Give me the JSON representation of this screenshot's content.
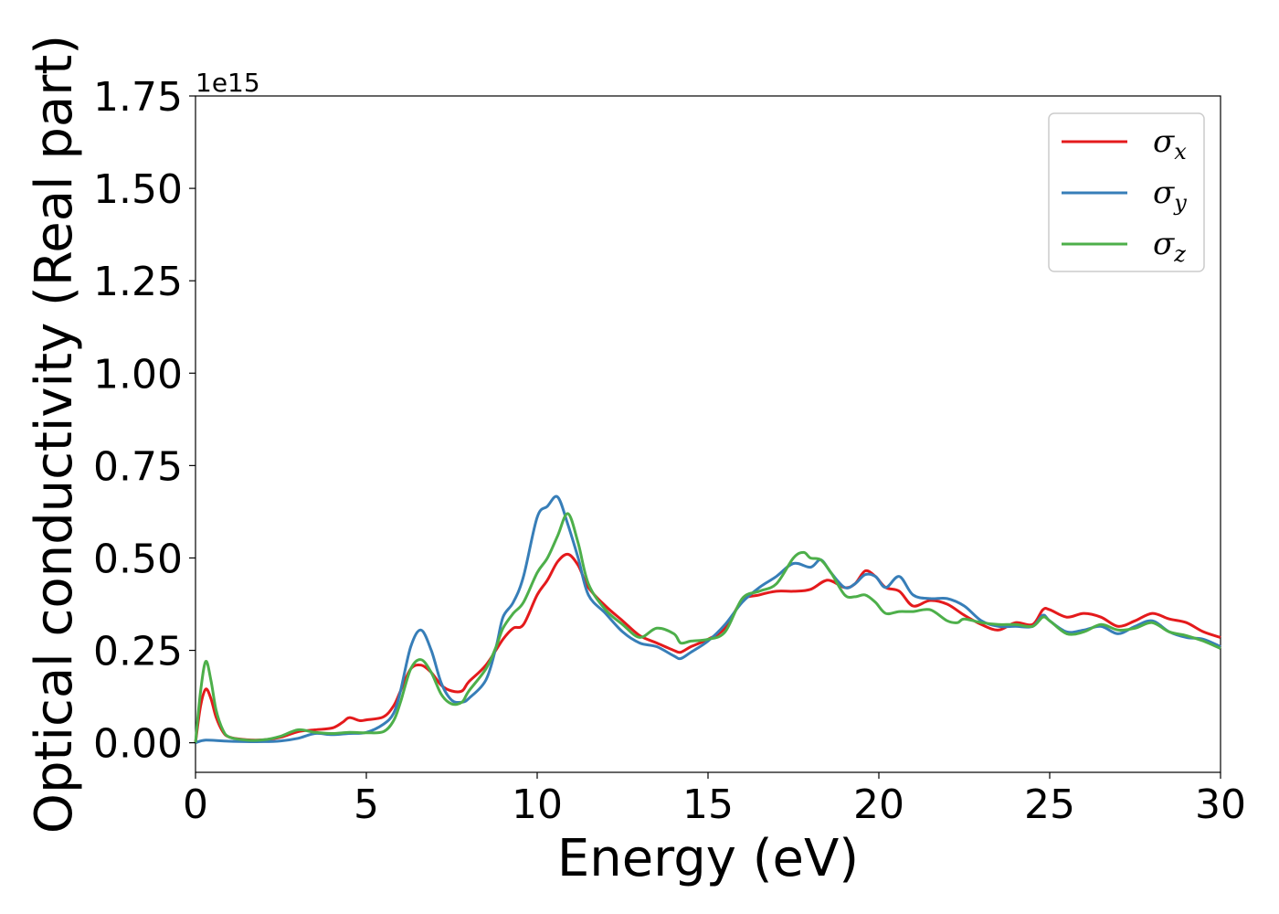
{
  "chart_data": {
    "type": "line",
    "title": "",
    "xlabel": "Energy (eV)",
    "ylabel": "Optical conductivity (Real part)",
    "y_offset_label": "1e15",
    "xlim": [
      0,
      30
    ],
    "ylim": [
      -0.08,
      1.75
    ],
    "x_ticks": [
      0,
      5,
      10,
      15,
      20,
      25,
      30
    ],
    "x_tick_labels": [
      "0",
      "5",
      "10",
      "15",
      "20",
      "25",
      "30"
    ],
    "y_ticks": [
      0.0,
      0.25,
      0.5,
      0.75,
      1.0,
      1.25,
      1.5,
      1.75
    ],
    "y_tick_labels": [
      "0.00",
      "0.25",
      "0.50",
      "0.75",
      "1.00",
      "1.25",
      "1.50",
      "1.75"
    ],
    "grid": false,
    "legend_position": "top-right",
    "series": [
      {
        "name": "σx",
        "name_base": "σ",
        "name_sub": "x",
        "color": "#e41a1c",
        "points": [
          [
            0,
            0
          ],
          [
            0.15,
            0.1
          ],
          [
            0.3,
            0.145
          ],
          [
            0.45,
            0.12
          ],
          [
            0.6,
            0.07
          ],
          [
            0.8,
            0.03
          ],
          [
            1.0,
            0.015
          ],
          [
            1.5,
            0.008
          ],
          [
            2.0,
            0.008
          ],
          [
            2.5,
            0.015
          ],
          [
            3.0,
            0.03
          ],
          [
            3.5,
            0.035
          ],
          [
            4.0,
            0.04
          ],
          [
            4.3,
            0.055
          ],
          [
            4.5,
            0.068
          ],
          [
            4.8,
            0.06
          ],
          [
            5.0,
            0.062
          ],
          [
            5.5,
            0.07
          ],
          [
            5.8,
            0.1
          ],
          [
            6.0,
            0.14
          ],
          [
            6.3,
            0.2
          ],
          [
            6.6,
            0.21
          ],
          [
            6.9,
            0.19
          ],
          [
            7.2,
            0.155
          ],
          [
            7.5,
            0.14
          ],
          [
            7.8,
            0.14
          ],
          [
            8.0,
            0.165
          ],
          [
            8.5,
            0.21
          ],
          [
            9.0,
            0.28
          ],
          [
            9.3,
            0.31
          ],
          [
            9.6,
            0.32
          ],
          [
            10.0,
            0.4
          ],
          [
            10.3,
            0.44
          ],
          [
            10.6,
            0.49
          ],
          [
            10.9,
            0.51
          ],
          [
            11.2,
            0.48
          ],
          [
            11.5,
            0.42
          ],
          [
            12.0,
            0.37
          ],
          [
            12.5,
            0.33
          ],
          [
            13.0,
            0.29
          ],
          [
            13.5,
            0.27
          ],
          [
            14.0,
            0.25
          ],
          [
            14.2,
            0.245
          ],
          [
            14.5,
            0.26
          ],
          [
            15.0,
            0.28
          ],
          [
            15.5,
            0.31
          ],
          [
            16.0,
            0.385
          ],
          [
            16.5,
            0.4
          ],
          [
            17.0,
            0.41
          ],
          [
            17.5,
            0.41
          ],
          [
            18.0,
            0.415
          ],
          [
            18.5,
            0.44
          ],
          [
            19.0,
            0.42
          ],
          [
            19.3,
            0.43
          ],
          [
            19.6,
            0.465
          ],
          [
            19.9,
            0.45
          ],
          [
            20.2,
            0.42
          ],
          [
            20.6,
            0.41
          ],
          [
            21.0,
            0.37
          ],
          [
            21.5,
            0.385
          ],
          [
            22.0,
            0.375
          ],
          [
            22.5,
            0.345
          ],
          [
            23.0,
            0.32
          ],
          [
            23.5,
            0.305
          ],
          [
            24.0,
            0.325
          ],
          [
            24.5,
            0.32
          ],
          [
            24.8,
            0.36
          ],
          [
            25.0,
            0.36
          ],
          [
            25.5,
            0.34
          ],
          [
            26.0,
            0.35
          ],
          [
            26.5,
            0.34
          ],
          [
            27.0,
            0.315
          ],
          [
            27.5,
            0.33
          ],
          [
            28.0,
            0.35
          ],
          [
            28.5,
            0.335
          ],
          [
            29.0,
            0.325
          ],
          [
            29.5,
            0.3
          ],
          [
            30.0,
            0.285
          ]
        ]
      },
      {
        "name": "σy",
        "name_base": "σ",
        "name_sub": "y",
        "color": "#377eb8",
        "points": [
          [
            0,
            0
          ],
          [
            0.3,
            0.007
          ],
          [
            1.0,
            0.004
          ],
          [
            2.0,
            0.003
          ],
          [
            2.5,
            0.005
          ],
          [
            3.0,
            0.012
          ],
          [
            3.5,
            0.025
          ],
          [
            4.0,
            0.022
          ],
          [
            4.5,
            0.025
          ],
          [
            5.0,
            0.028
          ],
          [
            5.5,
            0.05
          ],
          [
            5.8,
            0.08
          ],
          [
            6.0,
            0.14
          ],
          [
            6.3,
            0.26
          ],
          [
            6.6,
            0.305
          ],
          [
            6.9,
            0.25
          ],
          [
            7.2,
            0.16
          ],
          [
            7.5,
            0.115
          ],
          [
            7.8,
            0.11
          ],
          [
            8.0,
            0.12
          ],
          [
            8.5,
            0.17
          ],
          [
            8.8,
            0.26
          ],
          [
            9.0,
            0.34
          ],
          [
            9.3,
            0.38
          ],
          [
            9.6,
            0.45
          ],
          [
            10.0,
            0.61
          ],
          [
            10.3,
            0.64
          ],
          [
            10.6,
            0.665
          ],
          [
            10.9,
            0.59
          ],
          [
            11.2,
            0.5
          ],
          [
            11.5,
            0.4
          ],
          [
            12.0,
            0.35
          ],
          [
            12.5,
            0.3
          ],
          [
            13.0,
            0.27
          ],
          [
            13.5,
            0.26
          ],
          [
            14.0,
            0.235
          ],
          [
            14.2,
            0.228
          ],
          [
            14.5,
            0.245
          ],
          [
            15.0,
            0.275
          ],
          [
            15.5,
            0.32
          ],
          [
            16.0,
            0.38
          ],
          [
            16.5,
            0.42
          ],
          [
            17.0,
            0.45
          ],
          [
            17.5,
            0.485
          ],
          [
            18.0,
            0.475
          ],
          [
            18.3,
            0.495
          ],
          [
            18.6,
            0.46
          ],
          [
            19.0,
            0.42
          ],
          [
            19.3,
            0.43
          ],
          [
            19.6,
            0.455
          ],
          [
            19.9,
            0.45
          ],
          [
            20.2,
            0.42
          ],
          [
            20.6,
            0.45
          ],
          [
            21.0,
            0.4
          ],
          [
            21.5,
            0.39
          ],
          [
            22.0,
            0.39
          ],
          [
            22.5,
            0.37
          ],
          [
            23.0,
            0.33
          ],
          [
            23.5,
            0.315
          ],
          [
            24.0,
            0.315
          ],
          [
            24.5,
            0.315
          ],
          [
            24.8,
            0.345
          ],
          [
            25.0,
            0.33
          ],
          [
            25.5,
            0.3
          ],
          [
            26.0,
            0.305
          ],
          [
            26.5,
            0.315
          ],
          [
            27.0,
            0.295
          ],
          [
            27.5,
            0.315
          ],
          [
            28.0,
            0.33
          ],
          [
            28.5,
            0.3
          ],
          [
            29.0,
            0.285
          ],
          [
            29.5,
            0.28
          ],
          [
            30.0,
            0.26
          ]
        ]
      },
      {
        "name": "σz",
        "name_base": "σ",
        "name_sub": "z",
        "color": "#4daf4a",
        "points": [
          [
            0,
            0
          ],
          [
            0.15,
            0.14
          ],
          [
            0.3,
            0.22
          ],
          [
            0.45,
            0.17
          ],
          [
            0.6,
            0.09
          ],
          [
            0.8,
            0.035
          ],
          [
            1.0,
            0.015
          ],
          [
            1.5,
            0.007
          ],
          [
            2.0,
            0.008
          ],
          [
            2.5,
            0.018
          ],
          [
            3.0,
            0.035
          ],
          [
            3.5,
            0.028
          ],
          [
            4.0,
            0.025
          ],
          [
            4.5,
            0.028
          ],
          [
            5.0,
            0.027
          ],
          [
            5.5,
            0.03
          ],
          [
            5.8,
            0.06
          ],
          [
            6.0,
            0.11
          ],
          [
            6.3,
            0.2
          ],
          [
            6.6,
            0.225
          ],
          [
            6.9,
            0.19
          ],
          [
            7.2,
            0.13
          ],
          [
            7.5,
            0.105
          ],
          [
            7.8,
            0.11
          ],
          [
            8.0,
            0.14
          ],
          [
            8.5,
            0.2
          ],
          [
            8.8,
            0.26
          ],
          [
            9.0,
            0.31
          ],
          [
            9.3,
            0.35
          ],
          [
            9.6,
            0.38
          ],
          [
            10.0,
            0.46
          ],
          [
            10.3,
            0.5
          ],
          [
            10.6,
            0.56
          ],
          [
            10.9,
            0.62
          ],
          [
            11.2,
            0.54
          ],
          [
            11.5,
            0.43
          ],
          [
            12.0,
            0.36
          ],
          [
            12.5,
            0.32
          ],
          [
            13.0,
            0.285
          ],
          [
            13.5,
            0.31
          ],
          [
            14.0,
            0.295
          ],
          [
            14.2,
            0.27
          ],
          [
            14.5,
            0.275
          ],
          [
            15.0,
            0.28
          ],
          [
            15.5,
            0.3
          ],
          [
            16.0,
            0.39
          ],
          [
            16.5,
            0.41
          ],
          [
            17.0,
            0.43
          ],
          [
            17.5,
            0.5
          ],
          [
            17.8,
            0.515
          ],
          [
            18.0,
            0.5
          ],
          [
            18.3,
            0.495
          ],
          [
            18.6,
            0.46
          ],
          [
            19.0,
            0.4
          ],
          [
            19.3,
            0.395
          ],
          [
            19.6,
            0.4
          ],
          [
            19.9,
            0.38
          ],
          [
            20.2,
            0.35
          ],
          [
            20.6,
            0.355
          ],
          [
            21.0,
            0.355
          ],
          [
            21.5,
            0.36
          ],
          [
            22.0,
            0.33
          ],
          [
            22.3,
            0.325
          ],
          [
            22.5,
            0.335
          ],
          [
            23.0,
            0.325
          ],
          [
            23.5,
            0.32
          ],
          [
            24.0,
            0.32
          ],
          [
            24.5,
            0.315
          ],
          [
            24.8,
            0.34
          ],
          [
            25.0,
            0.33
          ],
          [
            25.5,
            0.295
          ],
          [
            26.0,
            0.3
          ],
          [
            26.5,
            0.32
          ],
          [
            27.0,
            0.305
          ],
          [
            27.5,
            0.31
          ],
          [
            28.0,
            0.325
          ],
          [
            28.5,
            0.3
          ],
          [
            29.0,
            0.29
          ],
          [
            29.5,
            0.275
          ],
          [
            30.0,
            0.255
          ]
        ]
      }
    ]
  }
}
